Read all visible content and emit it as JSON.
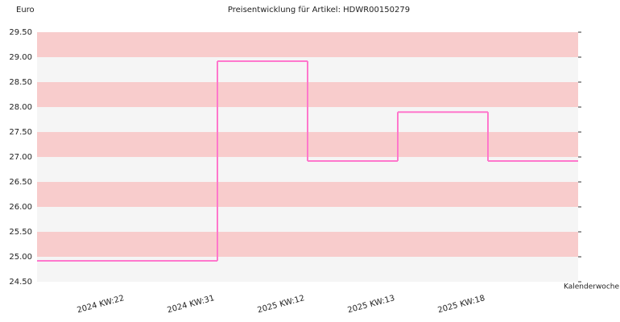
{
  "chart_data": {
    "type": "step",
    "title": "Preisentwicklung für Artikel: HDWR00150279",
    "ylabel": "Euro",
    "xlabel": "Kalenderwoche",
    "categories": [
      "2024 KW:22",
      "2024 KW:31",
      "2025 KW:12",
      "2025 KW:13",
      "2025 KW:18"
    ],
    "values": [
      24.92,
      28.92,
      26.92,
      27.9,
      26.92
    ],
    "color": "#ff77cc",
    "band_colors": [
      "#f8cccc",
      "#f5f5f5"
    ],
    "ylim": [
      24.5,
      29.5
    ],
    "yticks": [
      {
        "value": 24.5,
        "label": "24.50"
      },
      {
        "value": 25,
        "label": "25.00"
      },
      {
        "value": 25.5,
        "label": "25.50"
      },
      {
        "value": 26,
        "label": "26.00"
      },
      {
        "value": 26.5,
        "label": "26.50"
      },
      {
        "value": 27,
        "label": "27.00"
      },
      {
        "value": 27.5,
        "label": "27.50"
      },
      {
        "value": 28,
        "label": "28.00"
      },
      {
        "value": 28.5,
        "label": "28.50"
      },
      {
        "value": 29,
        "label": "29.00"
      },
      {
        "value": 29.5,
        "label": "29.50"
      }
    ]
  }
}
